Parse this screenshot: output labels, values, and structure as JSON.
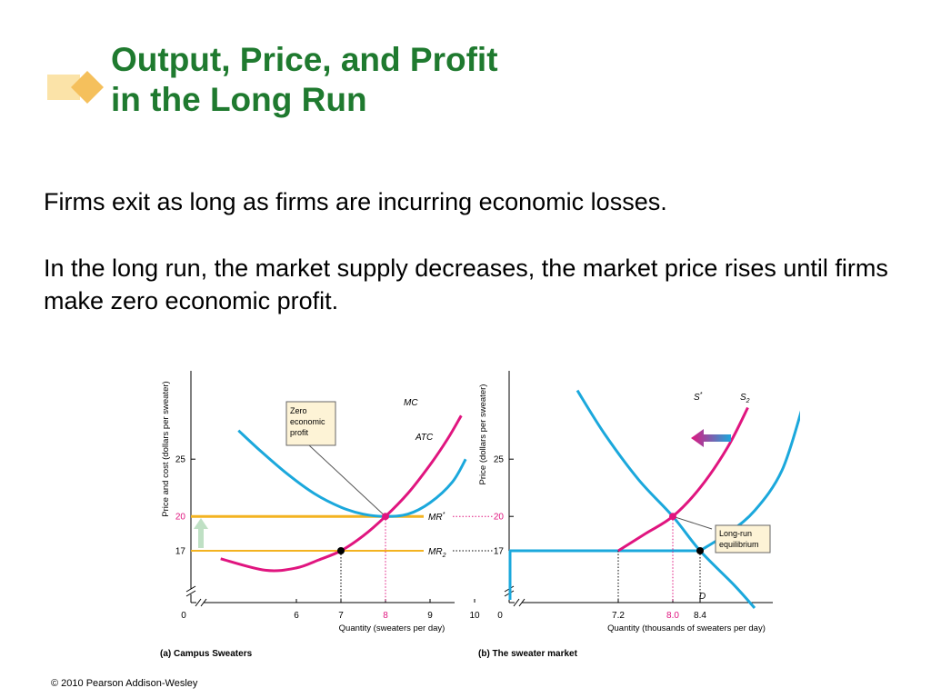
{
  "slide": {
    "title_line1": "Output, Price, and Profit",
    "title_line2": "in the Long Run",
    "paragraph1": "Firms exit as long as firms are incurring economic losses.",
    "paragraph2": "In the long run, the market supply decreases, the market price rises until firms make zero economic profit.",
    "footer": "© 2010 Pearson Addison-Wesley"
  },
  "colors": {
    "title": "#1f7a2f",
    "mc": "#e0157f",
    "atc": "#1ba8dc",
    "price_line": "#f3b321",
    "arrow_up": "#bfe0c4",
    "arrow_left": "#e0157f"
  },
  "chart_data": [
    {
      "type": "line",
      "caption": "(a) Campus Sweaters",
      "xlabel": "Quantity (sweaters per day)",
      "ylabel": "Price and cost (dollars per sweater)",
      "origin_label": "0",
      "x_ticks": [
        "6",
        "7",
        "8",
        "9",
        "10"
      ],
      "x_tick_values": [
        6,
        7,
        8,
        9,
        10
      ],
      "y_ticks": [
        "17",
        "20",
        "25"
      ],
      "y_tick_values": [
        17,
        20,
        25
      ],
      "highlighted_ticks": [
        "8",
        "20"
      ],
      "series": [
        {
          "name": "MC",
          "x": [
            4.3,
            5.3,
            6,
            6.5,
            7,
            7.5,
            8,
            8.5,
            9,
            9.4,
            9.7
          ],
          "y": [
            16.3,
            15.3,
            15.5,
            16.2,
            17,
            18.3,
            20,
            22,
            24.5,
            26.8,
            28.8
          ]
        },
        {
          "name": "ATC",
          "x": [
            4.7,
            5.2,
            5.8,
            6.4,
            7,
            7.5,
            8,
            8.5,
            9,
            9.5,
            9.8
          ],
          "y": [
            27.5,
            25.7,
            23.7,
            22,
            20.8,
            20.2,
            20,
            20.2,
            21.2,
            23,
            25
          ]
        },
        {
          "name": "MR*",
          "y_constant": 20
        },
        {
          "name": "MR2",
          "y_constant": 17
        }
      ],
      "points": [
        {
          "x": 8,
          "y": 20,
          "color": "magenta"
        },
        {
          "x": 7,
          "y": 17,
          "color": "black"
        }
      ],
      "annotations": [
        "Zero",
        "economic",
        "profit"
      ],
      "axis_break": true
    },
    {
      "type": "line",
      "caption": "(b) The sweater market",
      "xlabel": "Quantity (thousands of sweaters per day)",
      "ylabel": "Price (dollars per sweater)",
      "origin_label": "0",
      "x_ticks": [
        "7.2",
        "8.0",
        "8.4"
      ],
      "x_tick_values": [
        7.2,
        8.0,
        8.4
      ],
      "y_ticks": [
        "17",
        "20",
        "25"
      ],
      "y_tick_values": [
        17,
        20,
        25
      ],
      "highlighted_ticks": [
        "8.0",
        "20"
      ],
      "series": [
        {
          "name": "S*",
          "x": [
            7.2,
            7.6,
            8.0,
            8.4,
            8.8,
            9.1
          ],
          "y": [
            17,
            18.5,
            20,
            22.5,
            26,
            29.5
          ]
        },
        {
          "name": "S2",
          "x": [
            8.4,
            8.8,
            9.2,
            9.6,
            9.9
          ],
          "y": [
            17,
            18.5,
            20.5,
            24,
            29.5
          ]
        },
        {
          "name": "D",
          "x": [
            6.6,
            7.0,
            7.5,
            8.0,
            8.4,
            8.9,
            9.2
          ],
          "y": [
            31,
            27.2,
            23.2,
            20,
            17,
            14,
            12
          ]
        }
      ],
      "points": [
        {
          "x": 8.0,
          "y": 20,
          "color": "magenta"
        },
        {
          "x": 8.4,
          "y": 17,
          "color": "black"
        }
      ],
      "annotations": [
        "Long-run",
        "equilibrium"
      ],
      "axis_break": true
    }
  ],
  "chart_text": {
    "a": {
      "ylabel": "Price and cost (dollars per sweater)",
      "xlabel": "Quantity (sweaters per day)",
      "caption": "(a) Campus Sweaters",
      "origin": "0",
      "callout": [
        "Zero",
        "economic",
        "profit"
      ],
      "label_mc": "MC",
      "label_atc": "ATC",
      "label_mr_star": "MR*",
      "label_mr2": "MR2"
    },
    "b": {
      "ylabel": "Price (dollars per sweater)",
      "xlabel": "Quantity (thousands of sweaters per day)",
      "caption": "(b) The sweater market",
      "origin": "0",
      "callout": [
        "Long-run",
        "equilibrium"
      ],
      "label_s_star": "S*",
      "label_s2": "S2",
      "label_d": "D"
    }
  }
}
